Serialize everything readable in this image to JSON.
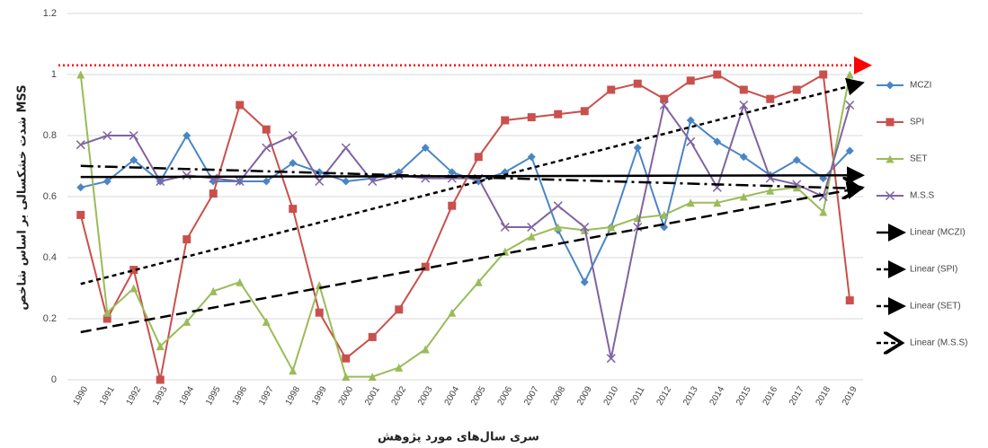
{
  "chart_data": {
    "type": "line",
    "y_label": "شدت خشکسالی بر اساس شاخص MSS",
    "x_label": "سری سال‌های مورد پژوهش",
    "categories": [
      "1990",
      "1991",
      "1992",
      "1993",
      "1994",
      "1995",
      "1996",
      "1997",
      "1998",
      "1999",
      "2000",
      "2001",
      "2002",
      "2003",
      "2004",
      "2005",
      "2006",
      "2007",
      "2008",
      "2009",
      "2010",
      "2011",
      "2012",
      "2013",
      "2014",
      "2015",
      "2016",
      "2017",
      "2018",
      "2019"
    ],
    "series": [
      {
        "name": "MCZI",
        "color": "#4a86c5",
        "marker": "diamond",
        "values": [
          0.63,
          0.65,
          0.72,
          0.65,
          0.8,
          0.65,
          0.65,
          0.65,
          0.71,
          0.68,
          0.65,
          0.66,
          0.68,
          0.76,
          0.68,
          0.65,
          0.68,
          0.73,
          0.49,
          0.32,
          0.5,
          0.76,
          0.5,
          0.85,
          0.78,
          0.73,
          0.67,
          0.72,
          0.66,
          0.75
        ]
      },
      {
        "name": "SPI",
        "color": "#c9504c",
        "marker": "square",
        "values": [
          0.54,
          0.2,
          0.36,
          0.0,
          0.46,
          0.61,
          0.9,
          0.82,
          0.56,
          0.22,
          0.07,
          0.14,
          0.23,
          0.37,
          0.57,
          0.73,
          0.85,
          0.86,
          0.87,
          0.88,
          0.95,
          0.97,
          0.92,
          0.98,
          1.0,
          0.95,
          0.92,
          0.95,
          1.0,
          0.26
        ]
      },
      {
        "name": "SET",
        "color": "#9bbb59",
        "marker": "triangle",
        "values": [
          1.0,
          0.22,
          0.3,
          0.11,
          0.19,
          0.29,
          0.32,
          0.19,
          0.03,
          0.31,
          0.01,
          0.01,
          0.04,
          0.1,
          0.22,
          0.32,
          0.42,
          0.47,
          0.5,
          0.49,
          0.5,
          0.53,
          0.54,
          0.58,
          0.58,
          0.6,
          0.62,
          0.63,
          0.55,
          1.0
        ]
      },
      {
        "name": "M.S.S",
        "color": "#8064a2",
        "marker": "x",
        "values": [
          0.77,
          0.8,
          0.8,
          0.65,
          0.67,
          0.66,
          0.65,
          0.76,
          0.8,
          0.65,
          0.76,
          0.65,
          0.67,
          0.66,
          0.66,
          0.66,
          0.5,
          0.5,
          0.57,
          0.5,
          0.07,
          0.5,
          0.9,
          0.78,
          0.63,
          0.9,
          0.66,
          0.64,
          0.6,
          0.9
        ]
      }
    ],
    "trendlines": [
      {
        "name": "Linear (MCZI)",
        "dash": "solid"
      },
      {
        "name": "Linear (SPI)",
        "dash": "short-dash"
      },
      {
        "name": "Linear (SET)",
        "dash": "long-dash"
      },
      {
        "name": "Linear (M.S.S)",
        "dash": "dash-dot"
      }
    ],
    "reference_line": {
      "value": 1.03,
      "color": "#ff0000"
    },
    "ylim": [
      0,
      1.2
    ],
    "yticks": [
      0,
      0.2,
      0.4,
      0.6,
      0.8,
      1,
      1.2
    ],
    "grid": true
  }
}
